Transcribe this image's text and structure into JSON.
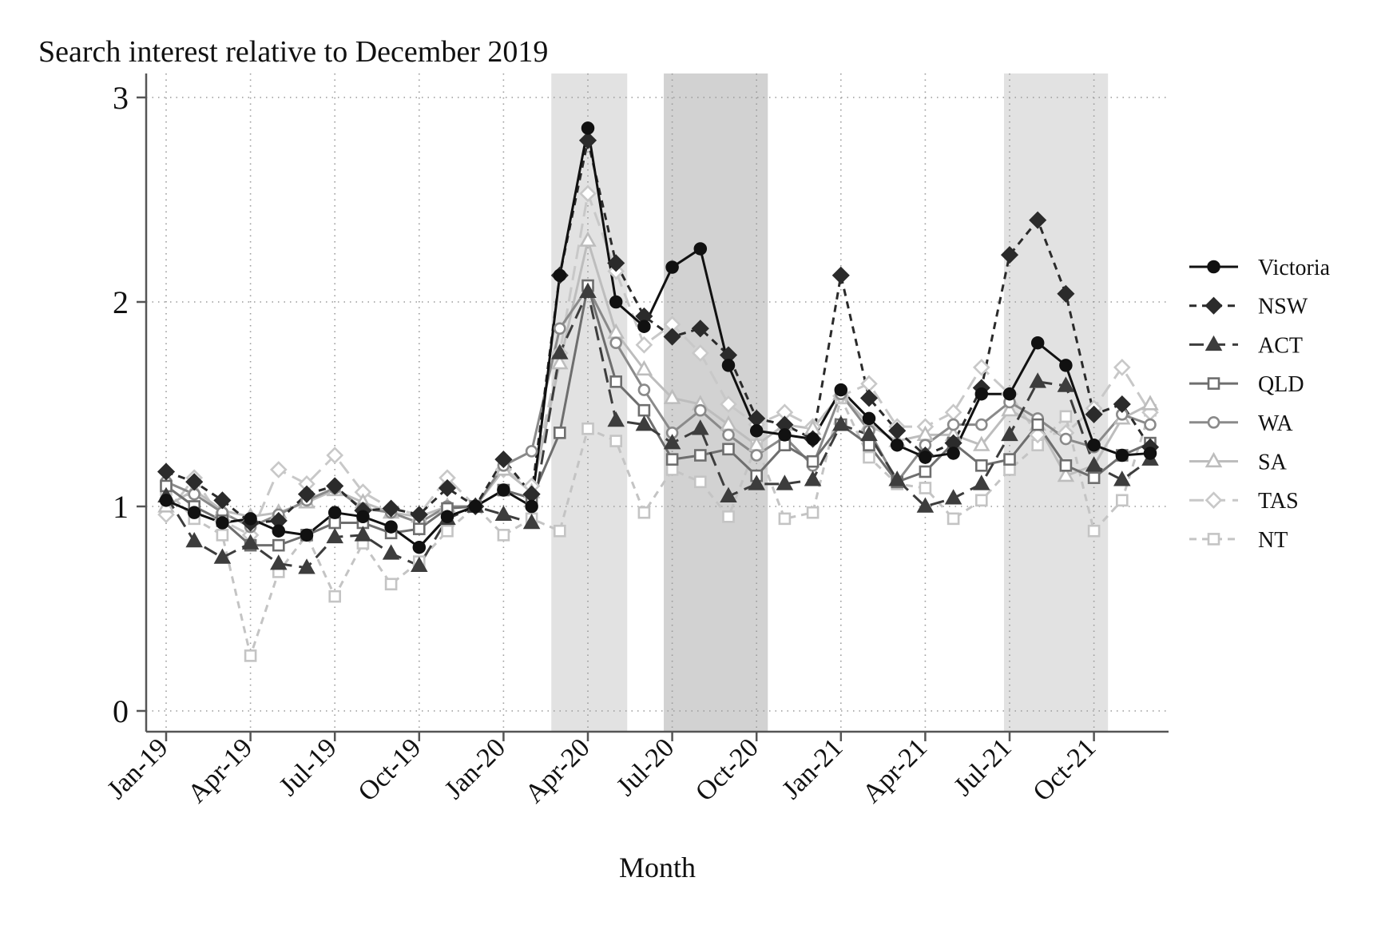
{
  "chart_data": {
    "type": "line",
    "title": "Search interest relative to December 2019",
    "xlabel": "Month",
    "ylabel": "",
    "ylim": [
      0,
      3
    ],
    "yticks": [
      0,
      1,
      2,
      3
    ],
    "grid": "dotted",
    "legend_position": "right",
    "xtick_labels": [
      "Jan-19",
      "Apr-19",
      "Jul-19",
      "Oct-19",
      "Jan-20",
      "Apr-20",
      "Jul-20",
      "Oct-20",
      "Jan-21",
      "Apr-21",
      "Jul-21",
      "Oct-21"
    ],
    "x_months": [
      "Jan-19",
      "Feb-19",
      "Mar-19",
      "Apr-19",
      "May-19",
      "Jun-19",
      "Jul-19",
      "Aug-19",
      "Sep-19",
      "Oct-19",
      "Nov-19",
      "Dec-19",
      "Jan-20",
      "Feb-20",
      "Mar-20",
      "Apr-20",
      "May-20",
      "Jun-20",
      "Jul-20",
      "Aug-20",
      "Sep-20",
      "Oct-20",
      "Nov-20",
      "Dec-20",
      "Jan-21",
      "Feb-21",
      "Mar-21",
      "Apr-21",
      "May-21",
      "Jun-21",
      "Jul-21",
      "Aug-21",
      "Sep-21",
      "Oct-21",
      "Nov-21",
      "Dec-21"
    ],
    "shaded_periods": [
      {
        "start": 13.7,
        "end": 16.4,
        "shade": "light"
      },
      {
        "start": 17.7,
        "end": 21.4,
        "shade": "dark"
      },
      {
        "start": 29.8,
        "end": 33.5,
        "shade": "light"
      }
    ],
    "series": [
      {
        "name": "Victoria",
        "color": "#111111",
        "dash": "solid",
        "marker": "circle-filled",
        "values": [
          1.03,
          0.97,
          0.92,
          0.94,
          0.88,
          0.86,
          0.97,
          0.95,
          0.9,
          0.8,
          0.95,
          1.0,
          1.08,
          1.0,
          2.13,
          2.85,
          2.0,
          1.88,
          2.17,
          2.26,
          1.69,
          1.37,
          1.35,
          1.33,
          1.57,
          1.43,
          1.3,
          1.24,
          1.26,
          1.55,
          1.55,
          1.8,
          1.69,
          1.3,
          1.25,
          1.26
        ]
      },
      {
        "name": "NSW",
        "color": "#2b2b2b",
        "dash": "dashed",
        "marker": "diamond-filled",
        "values": [
          1.17,
          1.12,
          1.03,
          0.92,
          0.93,
          1.06,
          1.1,
          0.98,
          0.99,
          0.96,
          1.09,
          1.0,
          1.23,
          1.06,
          2.13,
          2.79,
          2.19,
          1.93,
          1.83,
          1.87,
          1.74,
          1.43,
          1.4,
          1.33,
          2.13,
          1.53,
          1.37,
          1.25,
          1.31,
          1.58,
          2.23,
          2.4,
          2.04,
          1.45,
          1.5,
          1.29
        ]
      },
      {
        "name": "ACT",
        "color": "#3d3d3d",
        "dash": "long-dash",
        "marker": "triangle-filled",
        "values": [
          1.05,
          0.83,
          0.75,
          0.82,
          0.72,
          0.7,
          0.85,
          0.86,
          0.77,
          0.71,
          0.94,
          1.0,
          0.96,
          0.92,
          1.75,
          2.05,
          1.42,
          1.4,
          1.31,
          1.38,
          1.05,
          1.11,
          1.11,
          1.13,
          1.4,
          1.35,
          1.13,
          1.0,
          1.04,
          1.11,
          1.35,
          1.61,
          1.59,
          1.2,
          1.13,
          1.23
        ]
      },
      {
        "name": "QLD",
        "color": "#6e6e6e",
        "dash": "solid",
        "marker": "square-hollow",
        "values": [
          1.1,
          1.0,
          0.93,
          0.81,
          0.81,
          0.86,
          0.92,
          0.92,
          0.87,
          0.89,
          0.99,
          1.0,
          1.08,
          1.04,
          1.36,
          2.08,
          1.61,
          1.47,
          1.23,
          1.25,
          1.28,
          1.15,
          1.3,
          1.22,
          1.4,
          1.3,
          1.12,
          1.17,
          1.31,
          1.2,
          1.23,
          1.4,
          1.2,
          1.14,
          1.25,
          1.31
        ]
      },
      {
        "name": "WA",
        "color": "#8a8a8a",
        "dash": "solid",
        "marker": "circle-hollow",
        "values": [
          1.12,
          1.06,
          0.97,
          0.9,
          0.96,
          1.03,
          1.09,
          0.99,
          0.97,
          0.92,
          1.0,
          1.0,
          1.2,
          1.27,
          1.87,
          2.07,
          1.8,
          1.57,
          1.36,
          1.47,
          1.35,
          1.25,
          1.34,
          1.2,
          1.55,
          1.37,
          1.12,
          1.3,
          1.4,
          1.4,
          1.51,
          1.43,
          1.33,
          1.29,
          1.45,
          1.4
        ]
      },
      {
        "name": "SA",
        "color": "#bdbdbd",
        "dash": "solid",
        "marker": "triangle-hollow",
        "values": [
          1.0,
          1.08,
          0.98,
          0.95,
          0.97,
          1.02,
          1.08,
          1.02,
          0.97,
          0.95,
          1.0,
          1.0,
          1.18,
          1.07,
          1.7,
          2.3,
          1.85,
          1.67,
          1.53,
          1.5,
          1.4,
          1.3,
          1.4,
          1.38,
          1.55,
          1.4,
          1.32,
          1.35,
          1.35,
          1.3,
          1.47,
          1.4,
          1.15,
          1.2,
          1.43,
          1.5
        ]
      },
      {
        "name": "TAS",
        "color": "#c8c8c8",
        "dash": "long-dash",
        "marker": "diamond-hollow",
        "values": [
          0.96,
          1.14,
          0.93,
          0.86,
          1.18,
          1.11,
          1.25,
          1.07,
          0.99,
          0.96,
          1.14,
          1.0,
          1.18,
          1.1,
          1.75,
          2.53,
          2.15,
          1.79,
          1.89,
          1.75,
          1.5,
          1.4,
          1.46,
          1.39,
          1.54,
          1.6,
          1.39,
          1.39,
          1.46,
          1.68,
          1.55,
          1.35,
          1.36,
          1.48,
          1.68,
          1.46
        ]
      },
      {
        "name": "NT",
        "color": "#c4c4c4",
        "dash": "dashed",
        "marker": "square-hollow",
        "values": [
          1.08,
          0.94,
          0.86,
          0.27,
          0.68,
          0.86,
          0.56,
          0.82,
          0.62,
          0.73,
          0.88,
          1.0,
          0.86,
          0.94,
          0.88,
          1.38,
          1.32,
          0.97,
          1.18,
          1.12,
          0.95,
          1.3,
          0.94,
          0.97,
          1.53,
          1.24,
          1.11,
          1.09,
          0.94,
          1.03,
          1.18,
          1.3,
          1.44,
          0.88,
          1.03,
          1.47
        ]
      }
    ]
  }
}
